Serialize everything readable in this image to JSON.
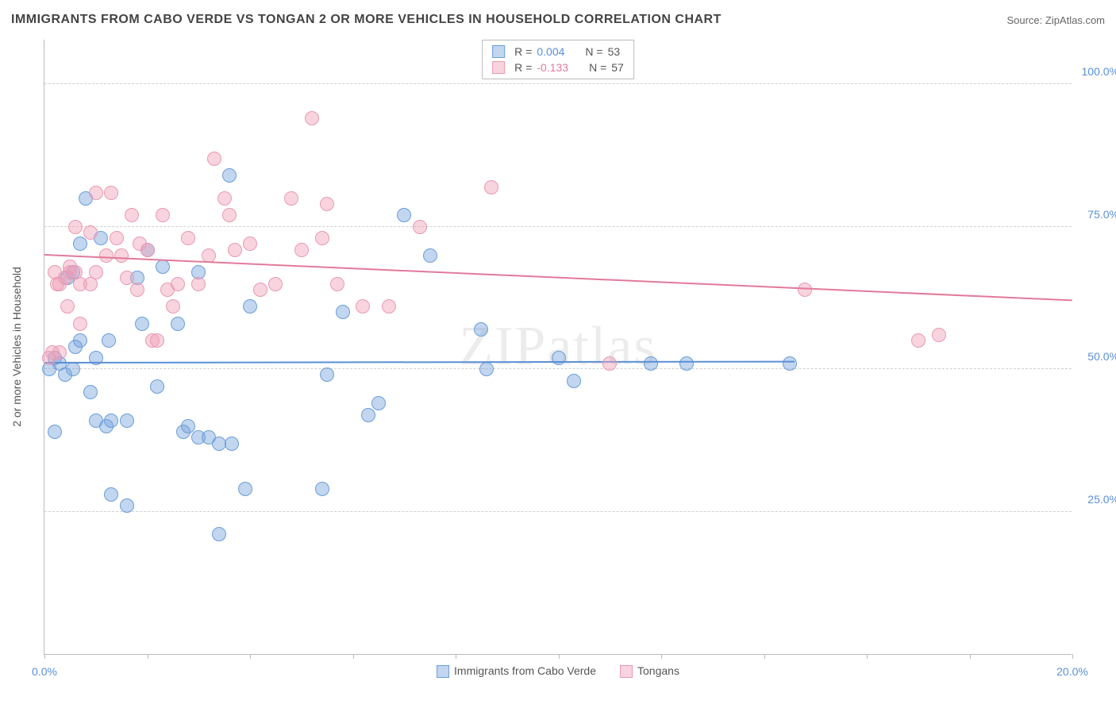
{
  "title": "IMMIGRANTS FROM CABO VERDE VS TONGAN 2 OR MORE VEHICLES IN HOUSEHOLD CORRELATION CHART",
  "source": "Source: ZipAtlas.com",
  "watermark": "ZIPatlas",
  "y_axis_title": "2 or more Vehicles in Household",
  "colors": {
    "series1_fill": "rgba(120,165,220,0.45)",
    "series1_stroke": "#6a9ed8",
    "series2_fill": "rgba(240,160,185,0.45)",
    "series2_stroke": "#e89ab2",
    "trend1": "#5a8fd6",
    "trend2": "#e27a99",
    "tick_label": "#5a8fd6",
    "grid": "#d0d0d0"
  },
  "legend_top": {
    "rows": [
      {
        "swatch_fill": "rgba(120,165,220,0.45)",
        "swatch_stroke": "#6a9ed8",
        "r_label": "R = ",
        "r_value": "0.004",
        "r_class": "stat-val-blue",
        "n_label": "N = ",
        "n_value": "53"
      },
      {
        "swatch_fill": "rgba(240,160,185,0.45)",
        "swatch_stroke": "#e89ab2",
        "r_label": "R = ",
        "r_value": "-0.133",
        "r_class": "stat-val-pink",
        "n_label": "N = ",
        "n_value": "57"
      }
    ]
  },
  "legend_bottom": [
    {
      "label": "Immigrants from Cabo Verde",
      "fill": "rgba(120,165,220,0.45)",
      "stroke": "#6a9ed8"
    },
    {
      "label": "Tongans",
      "fill": "rgba(240,160,185,0.45)",
      "stroke": "#e89ab2"
    }
  ],
  "chart": {
    "type": "scatter",
    "xlim": [
      0,
      20
    ],
    "ylim": [
      0,
      108
    ],
    "x_ticks": [
      0,
      2,
      4,
      6,
      8,
      10,
      12,
      14,
      16,
      18,
      20
    ],
    "x_tick_labels": {
      "0": "0.0%",
      "20": "20.0%"
    },
    "y_gridlines": [
      25,
      50,
      75,
      100
    ],
    "y_tick_labels": {
      "25": "25.0%",
      "50": "50.0%",
      "75": "75.0%",
      "100": "100.0%"
    },
    "point_radius": 9,
    "series": [
      {
        "name": "Immigrants from Cabo Verde",
        "fill": "rgba(120,165,220,0.45)",
        "stroke": "#6a9ed8",
        "trend": {
          "y_start": 51,
          "y_end": 51.2,
          "x_end_frac": 0.73
        },
        "points": [
          [
            0.1,
            50
          ],
          [
            0.2,
            52
          ],
          [
            0.2,
            39
          ],
          [
            0.3,
            51
          ],
          [
            0.4,
            49
          ],
          [
            0.45,
            66
          ],
          [
            0.55,
            67
          ],
          [
            0.55,
            50
          ],
          [
            0.6,
            54
          ],
          [
            0.7,
            72
          ],
          [
            0.7,
            55
          ],
          [
            0.8,
            80
          ],
          [
            0.9,
            46
          ],
          [
            1.0,
            41
          ],
          [
            1.0,
            52
          ],
          [
            1.1,
            73
          ],
          [
            1.2,
            40
          ],
          [
            1.25,
            55
          ],
          [
            1.3,
            28
          ],
          [
            1.3,
            41
          ],
          [
            1.6,
            26
          ],
          [
            1.6,
            41
          ],
          [
            1.8,
            66
          ],
          [
            1.9,
            58
          ],
          [
            2.0,
            71
          ],
          [
            2.2,
            47
          ],
          [
            2.3,
            68
          ],
          [
            2.6,
            58
          ],
          [
            2.7,
            39
          ],
          [
            2.8,
            40
          ],
          [
            3.0,
            38
          ],
          [
            3.0,
            67
          ],
          [
            3.2,
            38
          ],
          [
            3.4,
            37
          ],
          [
            3.4,
            21
          ],
          [
            3.6,
            84
          ],
          [
            3.65,
            37
          ],
          [
            3.9,
            29
          ],
          [
            4.0,
            61
          ],
          [
            5.4,
            29
          ],
          [
            5.5,
            49
          ],
          [
            5.8,
            60
          ],
          [
            6.3,
            42
          ],
          [
            6.5,
            44
          ],
          [
            7.0,
            77
          ],
          [
            7.5,
            70
          ],
          [
            8.5,
            57
          ],
          [
            8.6,
            50
          ],
          [
            10.0,
            52
          ],
          [
            10.3,
            48
          ],
          [
            11.8,
            51
          ],
          [
            12.5,
            51
          ],
          [
            14.5,
            51
          ]
        ]
      },
      {
        "name": "Tongans",
        "fill": "rgba(240,160,185,0.45)",
        "stroke": "#e89ab2",
        "trend": {
          "y_start": 70,
          "y_end": 62,
          "x_end_frac": 1.0
        },
        "points": [
          [
            0.1,
            52
          ],
          [
            0.15,
            53
          ],
          [
            0.2,
            67
          ],
          [
            0.25,
            65
          ],
          [
            0.3,
            65
          ],
          [
            0.3,
            53
          ],
          [
            0.4,
            66
          ],
          [
            0.45,
            61
          ],
          [
            0.5,
            67
          ],
          [
            0.5,
            68
          ],
          [
            0.6,
            75
          ],
          [
            0.6,
            67
          ],
          [
            0.7,
            65
          ],
          [
            0.7,
            58
          ],
          [
            0.9,
            65
          ],
          [
            0.9,
            74
          ],
          [
            1.0,
            67
          ],
          [
            1.0,
            81
          ],
          [
            1.2,
            70
          ],
          [
            1.3,
            81
          ],
          [
            1.4,
            73
          ],
          [
            1.5,
            70
          ],
          [
            1.6,
            66
          ],
          [
            1.7,
            77
          ],
          [
            1.8,
            64
          ],
          [
            1.85,
            72
          ],
          [
            2.0,
            71
          ],
          [
            2.1,
            55
          ],
          [
            2.2,
            55
          ],
          [
            2.3,
            77
          ],
          [
            2.4,
            64
          ],
          [
            2.5,
            61
          ],
          [
            2.6,
            65
          ],
          [
            2.8,
            73
          ],
          [
            3.0,
            65
          ],
          [
            3.2,
            70
          ],
          [
            3.3,
            87
          ],
          [
            3.5,
            80
          ],
          [
            3.6,
            77
          ],
          [
            3.7,
            71
          ],
          [
            4.0,
            72
          ],
          [
            4.2,
            64
          ],
          [
            4.5,
            65
          ],
          [
            4.8,
            80
          ],
          [
            5.0,
            71
          ],
          [
            5.2,
            94
          ],
          [
            5.4,
            73
          ],
          [
            5.5,
            79
          ],
          [
            5.7,
            65
          ],
          [
            6.2,
            61
          ],
          [
            6.7,
            61
          ],
          [
            7.3,
            75
          ],
          [
            8.7,
            82
          ],
          [
            11.0,
            51
          ],
          [
            17.0,
            55
          ],
          [
            17.4,
            56
          ],
          [
            14.8,
            64
          ]
        ]
      }
    ]
  }
}
